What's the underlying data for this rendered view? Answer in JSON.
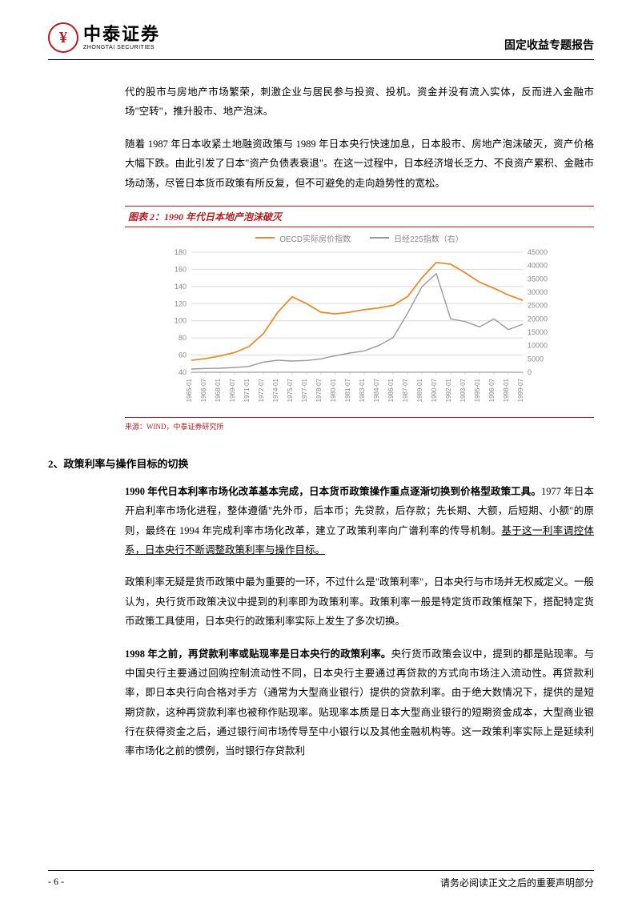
{
  "header": {
    "logo_cn": "中泰证券",
    "logo_en": "ZHONGTAI SECURITIES",
    "report_type": "固定收益专题报告"
  },
  "paragraphs": {
    "p1": "代的股市与房地产市场繁荣，刺激企业与居民参与投资、投机。资金并没有流入实体，反而进入金融市场\"空转\"，推升股市、地产泡沫。",
    "p2": "随着 1987 年日本收紧土地融资政策与 1989 年日本央行快速加息，日本股市、房地产泡沫破灭，资产价格大幅下跌。由此引发了日本\"资产负债表衰退\"。在这一过程中，日本经济增长乏力、不良资产累积、金融市场动荡，尽管日本货币政策有所反复，但不可避免的走向趋势性的宽松。",
    "p3_bold": "1990 年代日本利率市场化改革基本完成，日本货币政策操作重点逐渐切换到价格型政策工具。",
    "p3_rest": "1977 年日本开启利率市场化进程，整体遵循\"先外币，后本币；先贷款，后存款；先长期、大额，后短期、小额\"的原则，最终在 1994 年完成利率市场化改革，建立了政策利率向广谱利率的传导机制。",
    "p3_underline": "基于这一利率调控体系，日本央行不断调整政策利率与操作目标。",
    "p4": "政策利率无疑是货币政策中最为重要的一环，不过什么是\"政策利率\"，日本央行与市场并无权威定义。一般认为，央行货币政策决议中提到的利率即为政策利率。政策利率一般是特定货币政策框架下，搭配特定货币政策工具使用，日本央行的政策利率实际上发生了多次切换。",
    "p5_bold": "1998 年之前，再贷款利率或贴现率是日本央行的政策利率。",
    "p5_rest": "央行货币政策会议中，提到的都是贴现率。与中国央行主要通过回购控制流动性不同，日本央行主要通过再贷款的方式向市场注入流动性。再贷款利率，即日本央行向合格对手方（通常为大型商业银行）提供的贷款利率。由于绝大数情况下，提供的是短期贷款，这种再贷款利率也被称作贴现率。贴现率本质是日本大型商业银行的短期资金成本，大型商业银行在获得资金之后，通过银行间市场传导至中小银行以及其他金融机构等。这一政策利率实际上是延续利率市场化之前的惯例，当时银行存贷款利"
  },
  "section2_heading": "2、政策利率与操作目标的切换",
  "chart": {
    "title": "图表 2：1990 年代日本地产泡沫破灭",
    "source": "来源：WIND，中泰证券研究所",
    "legend_series1": "OECD实际房价指数",
    "legend_series2": "日经225指数（右）",
    "series1_color": "#e88b2d",
    "series2_color": "#999999",
    "grid_color": "#d9d9d9",
    "axis_text_color": "#888888",
    "background_color": "#ffffff",
    "left_axis": {
      "min": 40,
      "max": 180,
      "step": 20,
      "ticks": [
        40,
        60,
        80,
        100,
        120,
        140,
        160,
        180
      ]
    },
    "right_axis": {
      "min": 0,
      "max": 45000,
      "step": 5000,
      "ticks": [
        0,
        5000,
        10000,
        15000,
        20000,
        25000,
        30000,
        35000,
        40000,
        45000
      ]
    },
    "x_labels": [
      "1965-01",
      "1966-07",
      "1968-01",
      "1969-07",
      "1971-01",
      "1972-07",
      "1974-01",
      "1975-07",
      "1977-01",
      "1978-07",
      "1980-01",
      "1981-07",
      "1983-01",
      "1984-07",
      "1986-01",
      "1987-07",
      "1989-01",
      "1990-07",
      "1992-01",
      "1993-07",
      "1995-01",
      "1996-07",
      "1998-01",
      "1999-07"
    ],
    "series1_values": [
      54,
      56,
      59,
      63,
      70,
      85,
      110,
      128,
      120,
      110,
      108,
      110,
      113,
      115,
      118,
      128,
      150,
      168,
      166,
      156,
      145,
      138,
      130,
      124
    ],
    "series2_values": [
      1200,
      1400,
      1500,
      1800,
      2200,
      3800,
      4500,
      4200,
      4400,
      5000,
      6200,
      7200,
      8000,
      10000,
      13000,
      22000,
      32000,
      37000,
      20000,
      19000,
      17000,
      20000,
      16000,
      18000
    ]
  },
  "footer": {
    "page": "- 6 -",
    "disclaimer": "请务必阅读正文之后的重要声明部分"
  }
}
